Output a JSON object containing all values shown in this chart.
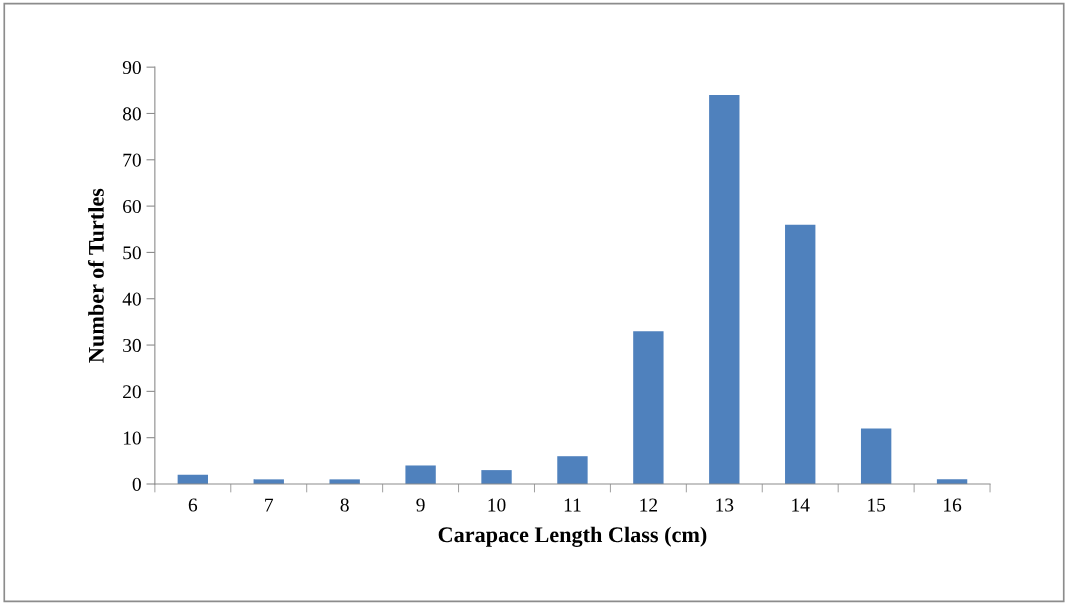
{
  "chart_data": {
    "type": "bar",
    "xlabel": "Carapace Length Class (cm)",
    "ylabel": "Number of Turtles",
    "categories": [
      "6",
      "7",
      "8",
      "9",
      "10",
      "11",
      "12",
      "13",
      "14",
      "15",
      "16"
    ],
    "values": [
      2,
      1,
      1,
      4,
      3,
      6,
      33,
      84,
      56,
      12,
      1
    ],
    "color": "#4f81bd",
    "ylim": [
      0,
      90
    ],
    "yticks": [
      0,
      10,
      20,
      30,
      40,
      50,
      60,
      70,
      80,
      90
    ],
    "grid": false,
    "legend": false
  }
}
